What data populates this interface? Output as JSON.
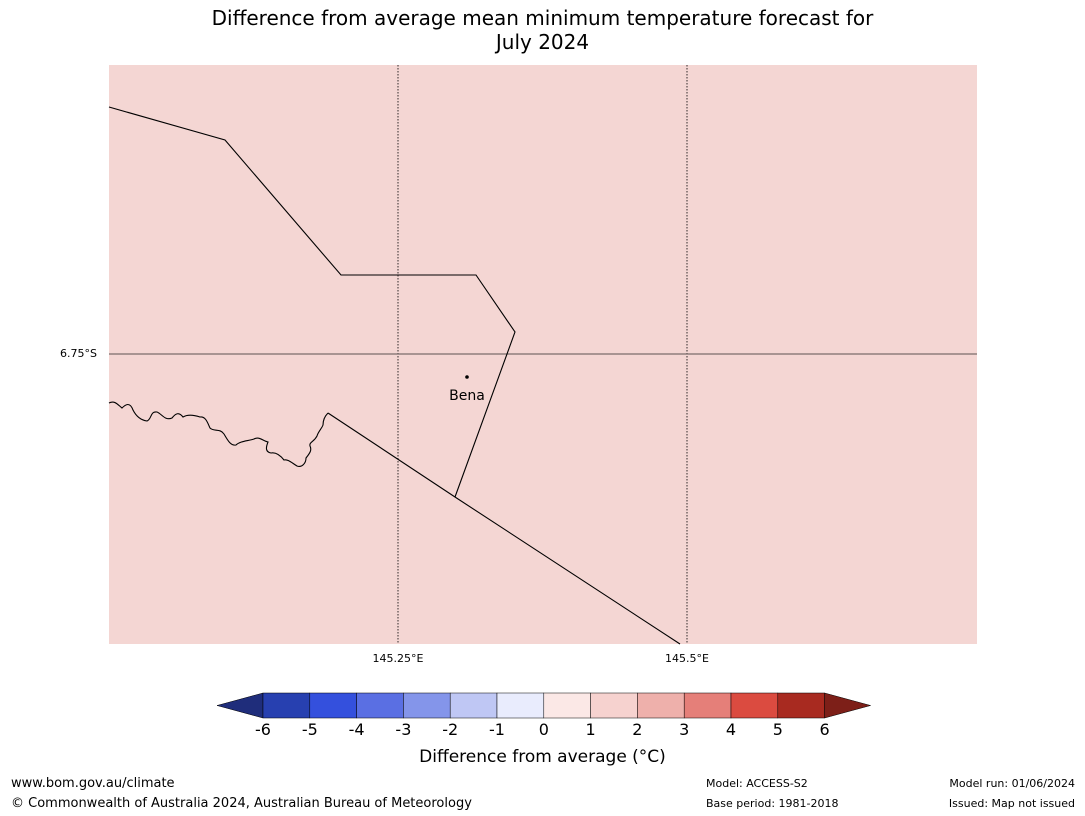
{
  "title_line1": "Difference from average mean minimum temperature forecast for",
  "title_line2": "July 2024",
  "map": {
    "fill_color": "#f4d6d3",
    "lat_label": "6.75°S",
    "lon_labels": [
      "145.25°E",
      "145.5°E"
    ],
    "place": "Bena"
  },
  "colorbar": {
    "ticks": [
      "-6",
      "-5",
      "-4",
      "-3",
      "-2",
      "-1",
      "0",
      "1",
      "2",
      "3",
      "4",
      "5",
      "6"
    ],
    "colors": [
      "#1f2d7b",
      "#2740b0",
      "#3450dd",
      "#5a6fe3",
      "#8495ea",
      "#bfc7f4",
      "#e9ecfd",
      "#fbe8e6",
      "#f6d2cf",
      "#eeb0ab",
      "#e57f79",
      "#db4b40",
      "#a82a20",
      "#7d1f18"
    ],
    "label": "Difference from average (°C)"
  },
  "footer": {
    "url": "www.bom.gov.au/climate",
    "copyright": "© Commonwealth of Australia 2024, Australian Bureau of Meteorology",
    "model": "Model: ACCESS-S2",
    "base_period": "Base period: 1981-2018",
    "model_run": "Model run: 01/06/2024",
    "issued": "Issued: Map not issued"
  }
}
